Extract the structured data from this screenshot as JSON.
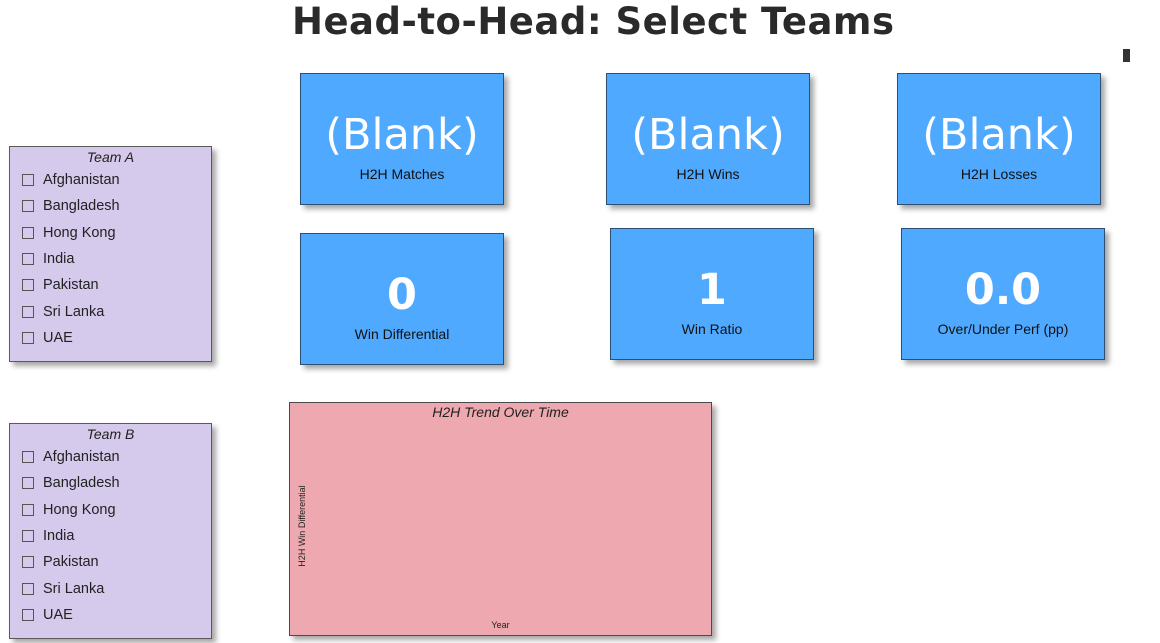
{
  "page": {
    "title": "Head-to-Head: Select Teams"
  },
  "slicer_a": {
    "header": "Team A",
    "items": [
      "Afghanistan",
      "Bangladesh",
      "Hong Kong",
      "India",
      "Pakistan",
      "Sri Lanka",
      "UAE"
    ]
  },
  "slicer_b": {
    "header": "Team B",
    "items": [
      "Afghanistan",
      "Bangladesh",
      "Hong Kong",
      "India",
      "Pakistan",
      "Sri Lanka",
      "UAE"
    ]
  },
  "cards": {
    "matches": {
      "value": "(Blank)",
      "label": "H2H Matches"
    },
    "wins": {
      "value": "(Blank)",
      "label": "H2H Wins"
    },
    "losses": {
      "value": "(Blank)",
      "label": "H2H Losses"
    },
    "differential": {
      "value": "0",
      "label": "Win Differential"
    },
    "ratio": {
      "value": "1",
      "label": "Win Ratio"
    },
    "perf": {
      "value": "0.0",
      "label": "Over/Under Perf (pp)"
    }
  },
  "chart": {
    "title": "H2H Trend Over Time",
    "ylabel": "H2H Win Differential",
    "xlabel": "Year"
  },
  "colors": {
    "card_bg": "#4ea9ff",
    "slicer_bg": "#d5c9ec",
    "chart_bg": "#eda9af"
  }
}
